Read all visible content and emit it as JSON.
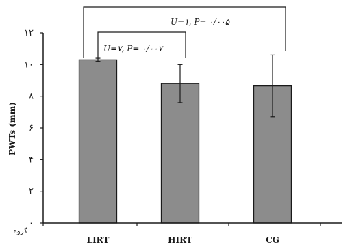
{
  "chart_data": {
    "type": "bar",
    "categories": [
      "LIRT",
      "HIRT",
      "CG"
    ],
    "values": [
      10.3,
      8.8,
      8.65
    ],
    "errors": [
      0.1,
      1.2,
      1.95
    ],
    "ylabel": "PWTs (mm)",
    "ylim": [
      0,
      12
    ],
    "yticks": [
      0,
      2,
      4,
      6,
      8,
      10,
      12
    ],
    "ytick_labels": [
      "۰",
      "۲",
      "۴",
      "۶",
      "۸",
      "۱۰",
      "۱۲"
    ],
    "x_axis_label": "گروه",
    "grid": false,
    "legend": "none",
    "bar_color": "#8c8c8c",
    "annotations": [
      {
        "text": "U=۷, P= ۰/۰۰۷",
        "from": "LIRT",
        "to": "HIRT"
      },
      {
        "text": "U=۱, P= ۰/۰۰۵",
        "from": "LIRT",
        "to": "CG"
      }
    ]
  }
}
